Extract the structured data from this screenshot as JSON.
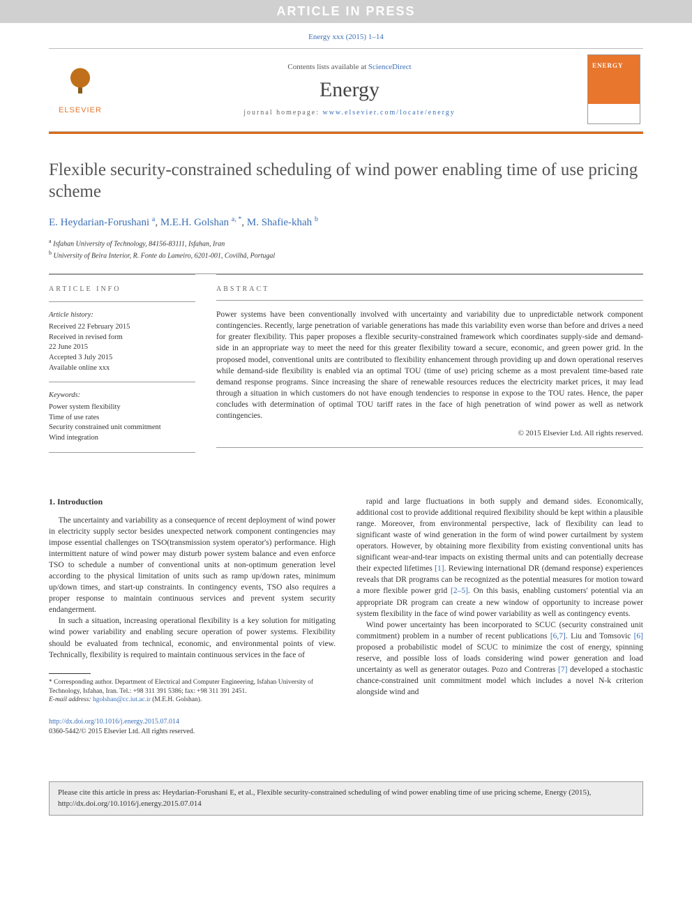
{
  "banner": "ARTICLE IN PRESS",
  "top_cite": "Energy xxx (2015) 1–14",
  "masthead": {
    "contents_prefix": "Contents lists available at ",
    "contents_link": "ScienceDirect",
    "journal": "Energy",
    "homepage_prefix": "journal homepage: ",
    "homepage_link": "www.elsevier.com/locate/energy",
    "publisher_label": "ELSEVIER"
  },
  "title": "Flexible security-constrained scheduling of wind power enabling time of use pricing scheme",
  "authors_html": "E. Heydarian-Forushani <sup>a</sup>, M.E.H. Golshan <sup>a, *</sup>, M. Shafie-khah <sup>b</sup>",
  "affiliations": {
    "a": "Isfahan University of Technology, 84156-83111, Isfahan, Iran",
    "b": "University of Beira Interior, R. Fonte do Lameiro, 6201-001, Covilhã, Portugal"
  },
  "article_info": {
    "head": "ARTICLE INFO",
    "history_label": "Article history:",
    "history": [
      "Received 22 February 2015",
      "Received in revised form",
      "22 June 2015",
      "Accepted 3 July 2015",
      "Available online xxx"
    ],
    "keywords_label": "Keywords:",
    "keywords": [
      "Power system flexibility",
      "Time of use rates",
      "Security constrained unit commitment",
      "Wind integration"
    ]
  },
  "abstract": {
    "head": "ABSTRACT",
    "text": "Power systems have been conventionally involved with uncertainty and variability due to unpredictable network component contingencies. Recently, large penetration of variable generations has made this variability even worse than before and drives a need for greater flexibility. This paper proposes a flexible security-constrained framework which coordinates supply-side and demand-side in an appropriate way to meet the need for this greater flexibility toward a secure, economic, and green power grid. In the proposed model, conventional units are contributed to flexibility enhancement through providing up and down operational reserves while demand-side flexibility is enabled via an optimal TOU (time of use) pricing scheme as a most prevalent time-based rate demand response programs. Since increasing the share of renewable resources reduces the electricity market prices, it may lead through a situation in which customers do not have enough tendencies to response in expose to the TOU rates. Hence, the paper concludes with determination of optimal TOU tariff rates in the face of high penetration of wind power as well as network contingencies.",
    "copyright": "© 2015 Elsevier Ltd. All rights reserved."
  },
  "section1": {
    "heading": "1. Introduction",
    "p1": "The uncertainty and variability as a consequence of recent deployment of wind power in electricity supply sector besides unexpected network component contingencies may impose essential challenges on TSO(transmission system operator's) performance. High intermittent nature of wind power may disturb power system balance and even enforce TSO to schedule a number of conventional units at non-optimum generation level according to the physical limitation of units such as ramp up/down rates, minimum up/down times, and start-up constraints. In contingency events, TSO also requires a proper response to maintain continuous services and prevent system security endangerment.",
    "p2": "In such a situation, increasing operational flexibility is a key solution for mitigating wind power variability and enabling secure operation of power systems. Flexibility should be evaluated from technical, economic, and environmental points of view. Technically, flexibility is required to maintain continuous services in the face of",
    "p3_a": "rapid and large fluctuations in both supply and demand sides. Economically, additional cost to provide additional required flexibility should be kept within a plausible range. Moreover, from environmental perspective, lack of flexibility can lead to significant waste of wind generation in the form of wind power curtailment by system operators. However, by obtaining more flexibility from existing conventional units has significant wear-and-tear impacts on existing thermal units and can potentially decrease their expected lifetimes ",
    "ref1": "[1]",
    "p3_b": ". Reviewing international DR (demand response) experiences reveals that DR programs can be recognized as the potential measures for motion toward a more flexible power grid ",
    "ref2_5": "[2–5]",
    "p3_c": ". On this basis, enabling customers' potential via an appropriate DR program can create a new window of opportunity to increase power system flexibility in the face of wind power variability as well as contingency events.",
    "p4_a": "Wind power uncertainty has been incorporated to SCUC (security constrained unit commitment) problem in a number of recent publications ",
    "ref6_7": "[6,7]",
    "p4_b": ". Liu and Tomsovic ",
    "ref6": "[6]",
    "p4_c": " proposed a probabilistic model of SCUC to minimize the cost of energy, spinning reserve, and possible loss of loads considering wind power generation and load uncertainty as well as generator outages. Pozo and Contreras ",
    "ref7": "[7]",
    "p4_d": " developed a stochastic chance-constrained unit commitment model which includes a novel N-k criterion alongside wind and"
  },
  "footnotes": {
    "corr": "* Corresponding author. Department of Electrical and Computer Engineering, Isfahan University of Technology, Isfahan, Iran. Tel.: +98 311 391 5386; fax: +98 311 391 2451.",
    "email_label": "E-mail address: ",
    "email": "hgolshan@cc.iut.ac.ir",
    "email_who": " (M.E.H. Golshan)."
  },
  "doi": {
    "link": "http://dx.doi.org/10.1016/j.energy.2015.07.014",
    "issn_line": "0360-5442/© 2015 Elsevier Ltd. All rights reserved."
  },
  "cite_box": "Please cite this article in press as: Heydarian-Forushani E, et al., Flexible security-constrained scheduling of wind power enabling time of use pricing scheme, Energy (2015), http://dx.doi.org/10.1016/j.energy.2015.07.014",
  "colors": {
    "accent_orange": "#d96b1a",
    "link_blue": "#3b6fb6",
    "banner_gray": "#d0d0d0"
  }
}
